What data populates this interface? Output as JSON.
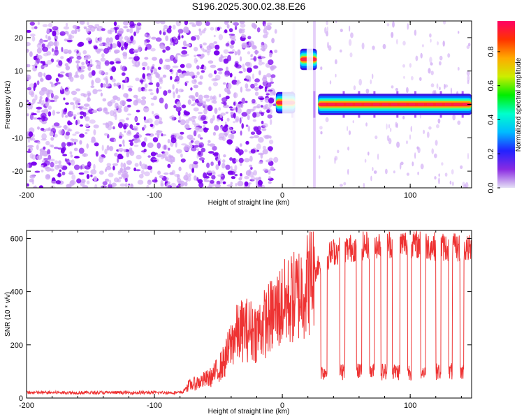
{
  "title": "S196.2025.300.02.38.E26",
  "colors": {
    "signal_line": "#ee3333",
    "spectrogram_noise": "#7a00ee",
    "spectrogram_noise_light": "#cfa8f4",
    "colormap": [
      "#e5e0f5",
      "#8a2be2",
      "#2222ff",
      "#00bbff",
      "#00ffcc",
      "#00ee00",
      "#ccee00",
      "#ffaa00",
      "#ff3300",
      "#ff0066"
    ]
  },
  "chart_data": [
    {
      "type": "heatmap",
      "id": "spectrogram",
      "xlabel": "Height of straight line (km)",
      "ylabel": "Frequency (Hz)",
      "xlim": [
        -200,
        148
      ],
      "ylim": [
        -25,
        25
      ],
      "xticks": [
        -200,
        -100,
        0,
        100
      ],
      "xtick_labels": [
        "-200",
        "-100",
        "0",
        "100"
      ],
      "yticks": [
        -20,
        -10,
        0,
        10,
        20
      ],
      "ytick_labels": [
        "-20",
        "-10",
        "0",
        "10",
        "20"
      ],
      "colorbar": {
        "label": "Normalized spectral amplitude",
        "range": [
          0,
          0.98
        ],
        "ticks": [
          0,
          0.2,
          0.4,
          0.6,
          0.8
        ],
        "tick_labels": [
          "0.0",
          "0.2",
          "0.4",
          "0.6",
          "0.8"
        ]
      },
      "noise_region": [
        -200,
        -5
      ],
      "features": [
        {
          "x": [
            -5,
            10
          ],
          "freq": 0.5,
          "peak": 0.95
        },
        {
          "x": [
            14,
            27
          ],
          "freq": 13.5,
          "peak": 0.95
        },
        {
          "x": [
            28,
            148
          ],
          "freq": 0,
          "peak": 0.95
        }
      ],
      "gaps": [
        [
          0,
          12
        ],
        [
          19,
          24
        ]
      ]
    },
    {
      "type": "line",
      "id": "snr",
      "xlabel": "Height of straight line (km)",
      "ylabel": "SNR (10 * v/v)",
      "xlim": [
        -200,
        148
      ],
      "ylim": [
        0,
        630
      ],
      "xticks": [
        -200,
        -100,
        0,
        100
      ],
      "xtick_labels": [
        "-200",
        "-100",
        "0",
        "100"
      ],
      "yticks": [
        0,
        200,
        400,
        600
      ],
      "ytick_labels": [
        "0",
        "200",
        "400",
        "600"
      ],
      "series": [
        {
          "name": "SNR",
          "envelope_x": [
            -200,
            -78,
            -74,
            -65,
            -55,
            -45,
            -38,
            -30,
            -20,
            -10,
            0,
            10,
            20,
            28,
            40,
            60,
            80,
            100,
            120,
            148
          ],
          "envelope_y": [
            18,
            18,
            45,
            60,
            80,
            140,
            230,
            260,
            250,
            300,
            350,
            380,
            430,
            500,
            550,
            570,
            580,
            580,
            570,
            560
          ],
          "dropouts": [
            [
              30,
              35
            ],
            [
              45,
              49
            ],
            [
              58,
              62
            ],
            [
              68,
              72
            ],
            [
              77,
              82
            ],
            [
              86,
              92
            ],
            [
              98,
              101
            ],
            [
              108,
              112
            ],
            [
              120,
              124
            ],
            [
              130,
              133
            ],
            [
              139,
              142
            ]
          ],
          "dropout_level": 110
        }
      ]
    }
  ]
}
